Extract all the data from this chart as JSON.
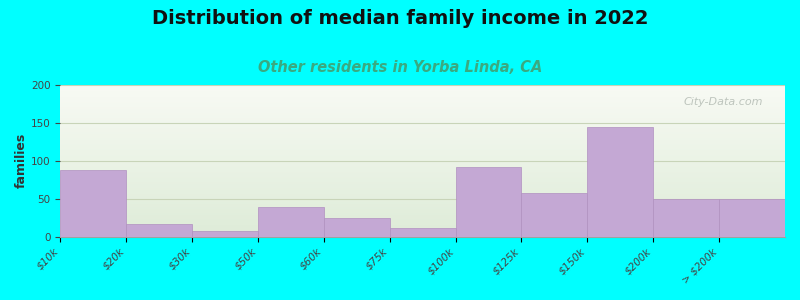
{
  "title": "Distribution of median family income in 2022",
  "subtitle": "Other residents in Yorba Linda, CA",
  "ylabel": "families",
  "categories": [
    "$10k",
    "$20k",
    "$30k",
    "$50k",
    "$60k",
    "$75k",
    "$100k",
    "$125k",
    "$150k",
    "$200k",
    "> $200k"
  ],
  "values": [
    88,
    17,
    7,
    39,
    25,
    12,
    92,
    57,
    144,
    50,
    50
  ],
  "bar_color": "#c4a8d4",
  "bar_edgecolor": "#b090c0",
  "bg_color": "#00ffff",
  "plot_bg_top_color": "#deecd8",
  "plot_bg_bottom_color": "#f8faf4",
  "title_fontsize": 14,
  "subtitle_fontsize": 10.5,
  "subtitle_color": "#3aaa80",
  "ylabel_fontsize": 9,
  "tick_fontsize": 7.5,
  "ylim": [
    0,
    200
  ],
  "yticks": [
    0,
    50,
    100,
    150,
    200
  ],
  "grid_color": "#c8d4b8",
  "watermark": "City-Data.com"
}
